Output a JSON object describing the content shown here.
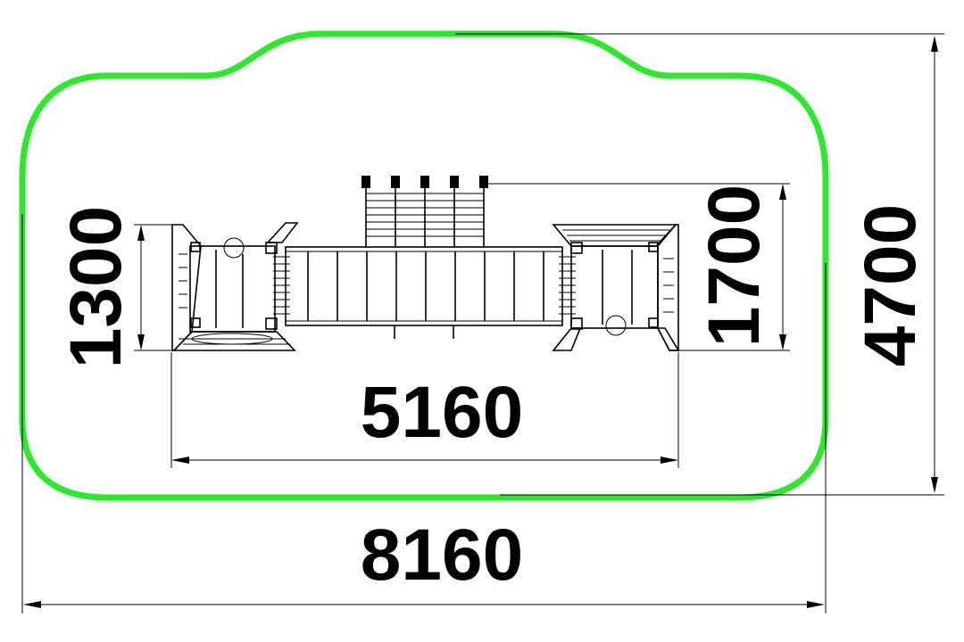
{
  "dimensions": {
    "total_width": "8160",
    "total_depth": "4700",
    "structure_width": "5160",
    "structure_depth_left": "1300",
    "structure_depth_right": "1700"
  },
  "colors": {
    "safety_zone": "#2ee82e",
    "lines": "#000000",
    "background": "#ffffff"
  }
}
